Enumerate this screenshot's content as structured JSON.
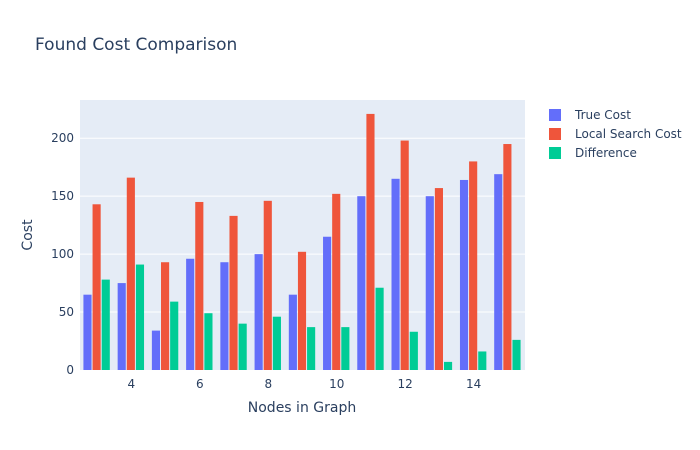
{
  "chart_data": {
    "type": "bar",
    "title": "Found Cost Comparison",
    "xlabel": "Nodes in Graph",
    "ylabel": "Cost",
    "x": [
      3,
      4,
      5,
      6,
      7,
      8,
      9,
      10,
      11,
      12,
      13,
      14,
      15
    ],
    "xlim": [
      2.5,
      15.5
    ],
    "ylim": [
      0,
      233
    ],
    "xticks": [
      4,
      6,
      8,
      10,
      12,
      14
    ],
    "yticks": [
      0,
      50,
      100,
      150,
      200
    ],
    "grid": true,
    "legend_position": "top-right",
    "series": [
      {
        "name": "True Cost",
        "color": "#636efa",
        "values": [
          65,
          75,
          34,
          96,
          93,
          100,
          65,
          115,
          150,
          165,
          150,
          164,
          169
        ]
      },
      {
        "name": "Local Search Cost",
        "color": "#ef553b",
        "values": [
          143,
          166,
          93,
          145,
          133,
          146,
          102,
          152,
          221,
          198,
          157,
          180,
          195
        ]
      },
      {
        "name": "Difference",
        "color": "#00cc96",
        "values": [
          78,
          91,
          59,
          49,
          40,
          46,
          37,
          37,
          71,
          33,
          7,
          16,
          26
        ]
      }
    ]
  }
}
